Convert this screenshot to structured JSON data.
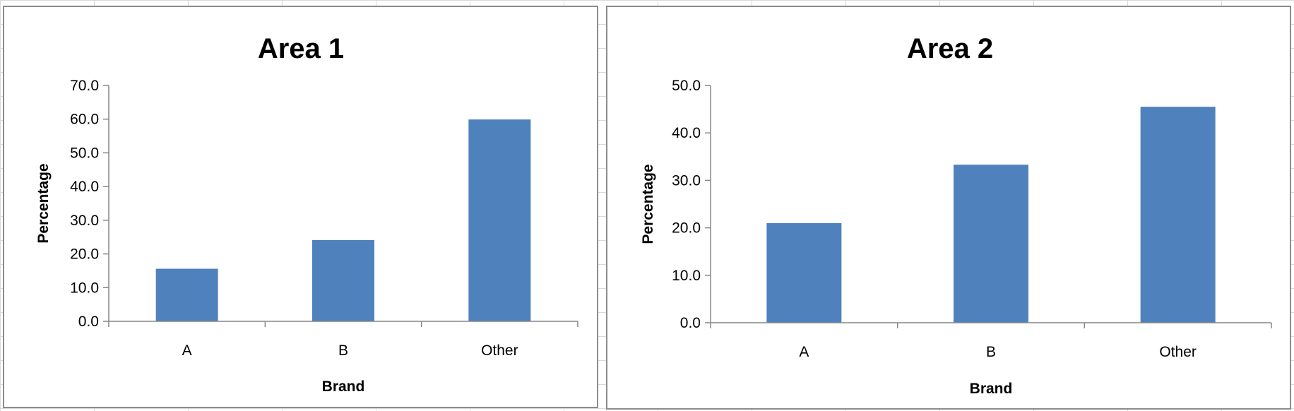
{
  "chart_data": [
    {
      "type": "bar",
      "title": "Area 1",
      "xlabel": "Brand",
      "ylabel": "Percentage",
      "categories": [
        "A",
        "B",
        "Other"
      ],
      "values": [
        15.6,
        24.1,
        59.9
      ],
      "ylim": [
        0,
        70
      ],
      "yticks": [
        "0.0",
        "10.0",
        "20.0",
        "30.0",
        "40.0",
        "50.0",
        "60.0",
        "70.0"
      ],
      "grid": false,
      "legend": "none",
      "bar_color": "#4f81bd"
    },
    {
      "type": "bar",
      "title": "Area 2",
      "xlabel": "Brand",
      "ylabel": "Percentage",
      "categories": [
        "A",
        "B",
        "Other"
      ],
      "values": [
        21.0,
        33.3,
        45.5
      ],
      "ylim": [
        0,
        50
      ],
      "yticks": [
        "0.0",
        "10.0",
        "20.0",
        "30.0",
        "40.0",
        "50.0"
      ],
      "grid": false,
      "legend": "none",
      "bar_color": "#4f81bd"
    }
  ]
}
